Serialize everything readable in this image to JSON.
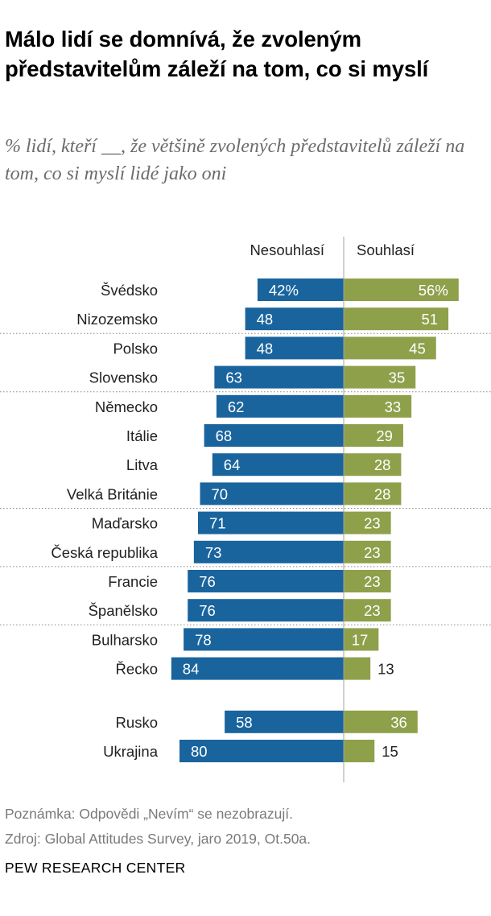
{
  "title": "Málo lidí se domnívá, že zvoleným představitelům záleží na tom, co si myslí",
  "subtitle": "% lidí, kteří __, že většině zvolených představitelů záleží na tom, co si myslí lidé jako oni",
  "note": "Poznámka: Odpovědi „Nevím“ se nezobrazují.",
  "source": "Zdroj: Global Attitudes Survey, jaro 2019,  Ot.50a.",
  "brand": "PEW RESEARCH CENTER",
  "colors": {
    "disagree": "#1a649e",
    "agree": "#8fa04b",
    "separator": "#a0a0a0"
  },
  "chart_data": {
    "type": "bar",
    "orientation": "diverging-horizontal",
    "series": [
      {
        "name": "Nesouhlasí",
        "values": [
          42,
          48,
          48,
          63,
          62,
          68,
          64,
          70,
          71,
          73,
          76,
          76,
          78,
          84,
          58,
          80
        ]
      },
      {
        "name": "Souhlasí",
        "values": [
          56,
          51,
          45,
          35,
          33,
          29,
          28,
          28,
          23,
          23,
          23,
          23,
          17,
          13,
          36,
          15
        ]
      }
    ],
    "categories": [
      "Švédsko",
      "Nizozemsko",
      "Polsko",
      "Slovensko",
      "Německo",
      "Itálie",
      "Litva",
      "Velká Británie",
      "Maďarsko",
      "Česká republika",
      "Francie",
      "Španělsko",
      "Bulharsko",
      "Řecko",
      "Rusko",
      "Ukrajina"
    ],
    "value_labels": {
      "disagree": [
        "42%",
        "48",
        "48",
        "63",
        "62",
        "68",
        "64",
        "70",
        "71",
        "73",
        "76",
        "76",
        "78",
        "84",
        "58",
        "80"
      ],
      "agree": [
        "56%",
        "51",
        "45",
        "35",
        "33",
        "29",
        "28",
        "28",
        "23",
        "23",
        "23",
        "23",
        "17",
        "13",
        "36",
        "15"
      ]
    },
    "xlim": [
      0,
      100
    ],
    "grid": false,
    "legend": "top"
  }
}
